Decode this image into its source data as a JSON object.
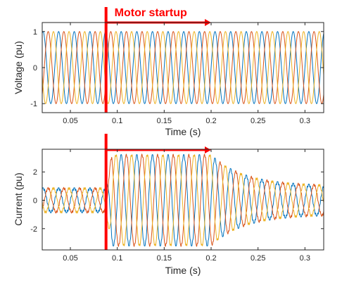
{
  "chart_data": [
    {
      "type": "line",
      "xlabel": "Time (s)",
      "ylabel": "Voltage (pu)",
      "xlim": [
        0.02,
        0.32
      ],
      "ylim": [
        -1.25,
        1.25
      ],
      "xticks": [
        0.05,
        0.1,
        0.15,
        0.2,
        0.25,
        0.3
      ],
      "xtick_labels": [
        "0.05",
        "0.1",
        "0.15",
        "0.2",
        "0.25",
        "0.3"
      ],
      "yticks": [
        -1,
        0,
        1
      ],
      "ytick_labels": [
        "-1",
        "0",
        "1"
      ],
      "frequency_hz": 60,
      "amplitude": 1.0,
      "phases_deg": [
        0,
        -120,
        120
      ],
      "series_colors": [
        "#0072BD",
        "#D95319",
        "#EDB120"
      ],
      "event_time": 0.088,
      "annotation": "Motor startup",
      "arrow_end_time": 0.2
    },
    {
      "type": "line",
      "xlabel": "Time (s)",
      "ylabel": "Current (pu)",
      "xlim": [
        0.02,
        0.32
      ],
      "ylim": [
        -3.5,
        3.6
      ],
      "xticks": [
        0.05,
        0.1,
        0.15,
        0.2,
        0.25,
        0.3
      ],
      "xtick_labels": [
        "0.05",
        "0.1",
        "0.15",
        "0.2",
        "0.25",
        "0.3"
      ],
      "yticks": [
        -2,
        0,
        2
      ],
      "ytick_labels": [
        "-2",
        "0",
        "2"
      ],
      "frequency_hz": 60,
      "pre_event_amplitude": 0.85,
      "peak_amplitude": 3.2,
      "final_amplitude": 1.0,
      "phases_deg": [
        0,
        -120,
        120
      ],
      "series_colors": [
        "#0072BD",
        "#D95319",
        "#EDB120"
      ],
      "event_time": 0.088,
      "arrow_end_time": 0.2
    }
  ],
  "colors": {
    "event_marker": "#ff0000",
    "axis": "#262626"
  }
}
